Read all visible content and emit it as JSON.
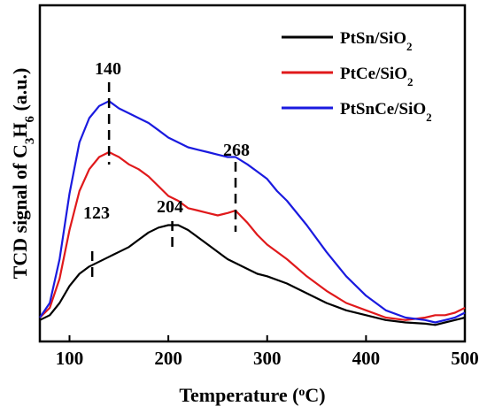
{
  "chart_data": {
    "type": "line",
    "xlabel": "Temperature (oC)",
    "ylabel": "TCD signal of C3H6 (a.u.)",
    "xlim": [
      70,
      500
    ],
    "ylim": [
      0,
      1
    ],
    "x_ticks": [
      100,
      200,
      300,
      400,
      500
    ],
    "y_tick_labels": false,
    "grid": false,
    "legend_position": "top-right",
    "series": [
      {
        "name": "PtSn/SiO2",
        "color": "#000000",
        "x": [
          70,
          80,
          90,
          100,
          110,
          120,
          130,
          140,
          150,
          160,
          170,
          180,
          190,
          200,
          210,
          220,
          230,
          240,
          250,
          260,
          270,
          280,
          290,
          300,
          320,
          340,
          360,
          380,
          400,
          420,
          440,
          460,
          470,
          480,
          490,
          500
        ],
        "y": [
          0.03,
          0.05,
          0.1,
          0.17,
          0.22,
          0.25,
          0.27,
          0.29,
          0.31,
          0.33,
          0.36,
          0.39,
          0.41,
          0.42,
          0.42,
          0.4,
          0.37,
          0.34,
          0.31,
          0.28,
          0.26,
          0.24,
          0.22,
          0.21,
          0.18,
          0.14,
          0.1,
          0.07,
          0.05,
          0.03,
          0.02,
          0.015,
          0.01,
          0.02,
          0.03,
          0.04
        ]
      },
      {
        "name": "PtCe/SiO2",
        "color": "#e0191b",
        "x": [
          70,
          80,
          90,
          100,
          110,
          120,
          130,
          140,
          150,
          160,
          170,
          180,
          190,
          200,
          210,
          220,
          230,
          240,
          250,
          260,
          268,
          280,
          290,
          300,
          320,
          340,
          360,
          380,
          400,
          420,
          440,
          460,
          470,
          480,
          490,
          500
        ],
        "y": [
          0.04,
          0.08,
          0.2,
          0.4,
          0.56,
          0.65,
          0.7,
          0.72,
          0.7,
          0.67,
          0.65,
          0.62,
          0.58,
          0.54,
          0.52,
          0.49,
          0.48,
          0.47,
          0.46,
          0.47,
          0.48,
          0.43,
          0.38,
          0.34,
          0.28,
          0.21,
          0.15,
          0.1,
          0.07,
          0.04,
          0.03,
          0.04,
          0.05,
          0.05,
          0.06,
          0.08
        ]
      },
      {
        "name": "PtSnCe/SiO2",
        "color": "#1a1adf",
        "x": [
          70,
          80,
          90,
          100,
          110,
          120,
          130,
          140,
          150,
          160,
          170,
          180,
          190,
          200,
          210,
          220,
          230,
          240,
          250,
          260,
          268,
          280,
          290,
          300,
          310,
          320,
          340,
          360,
          380,
          400,
          420,
          440,
          460,
          470,
          480,
          490,
          500
        ],
        "y": [
          0.04,
          0.1,
          0.28,
          0.55,
          0.76,
          0.86,
          0.91,
          0.93,
          0.9,
          0.88,
          0.86,
          0.84,
          0.81,
          0.78,
          0.76,
          0.74,
          0.73,
          0.72,
          0.71,
          0.7,
          0.7,
          0.67,
          0.64,
          0.61,
          0.56,
          0.52,
          0.42,
          0.31,
          0.21,
          0.13,
          0.07,
          0.04,
          0.03,
          0.02,
          0.03,
          0.04,
          0.06
        ]
      }
    ],
    "annotations": [
      {
        "label": "140",
        "x": 140
      },
      {
        "label": "268",
        "x": 268
      },
      {
        "label": "123",
        "x": 123
      },
      {
        "label": "204",
        "x": 204
      }
    ]
  },
  "axes": {
    "xlabel_main": "Temperature (",
    "xlabel_sup": "o",
    "xlabel_tail": "C)",
    "ylabel_pre": "TCD signal of C",
    "ylabel_sub1": "3",
    "ylabel_mid": "H",
    "ylabel_sub2": "6",
    "ylabel_tail": " (a.u.)"
  },
  "legend": [
    {
      "base": "PtSn/SiO",
      "sub": "2"
    },
    {
      "base": "PtCe/SiO",
      "sub": "2"
    },
    {
      "base": "PtSnCe/SiO",
      "sub": "2"
    }
  ]
}
